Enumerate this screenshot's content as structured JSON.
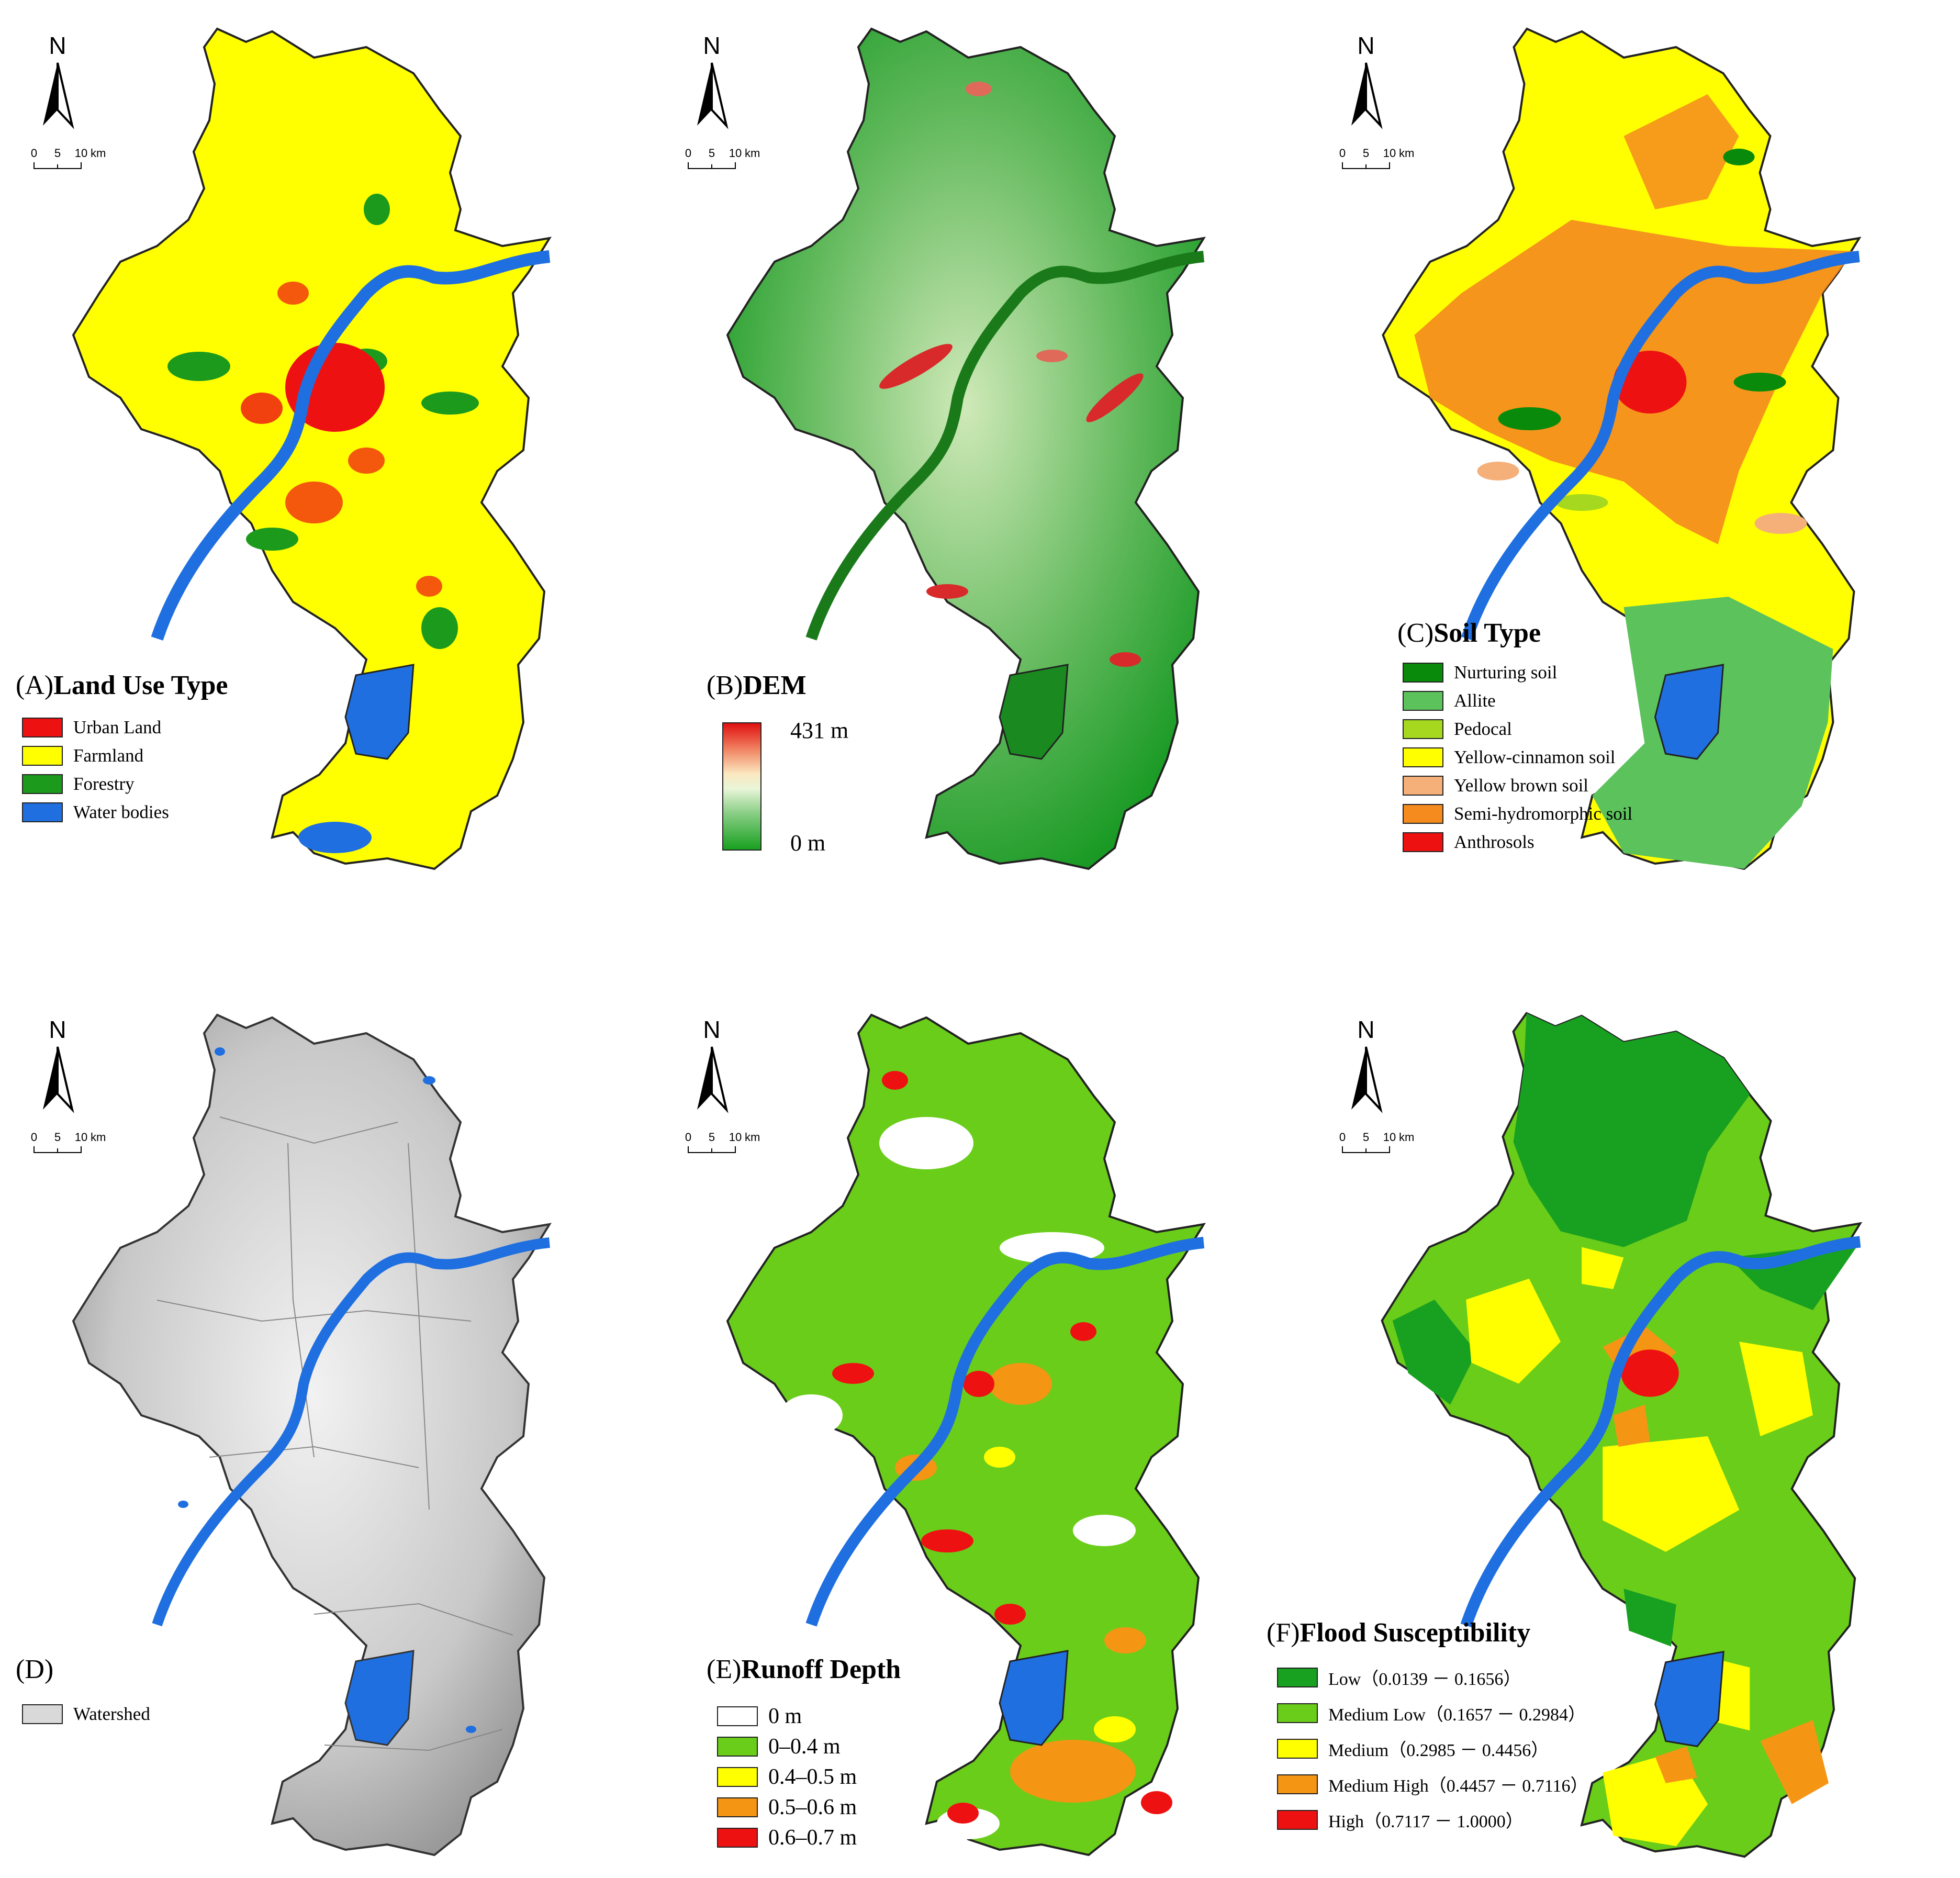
{
  "panels": {
    "a": {
      "tag": "(A)",
      "title": "Land Use Type",
      "legend": [
        {
          "label": "Urban Land",
          "color": "#ee1111"
        },
        {
          "label": "Farmland",
          "color": "#ffff00"
        },
        {
          "label": "Forestry",
          "color": "#1c9a1c"
        },
        {
          "label": "Water bodies",
          "color": "#1f6fe0"
        }
      ]
    },
    "b": {
      "tag": "(B)",
      "title": "DEM",
      "ramp_max": "431 m",
      "ramp_min": "0 m"
    },
    "c": {
      "tag": "(C)",
      "title": "Soil Type",
      "legend": [
        {
          "label": "Nurturing soil",
          "color": "#0a8a0a"
        },
        {
          "label": "Allite",
          "color": "#5cc25c"
        },
        {
          "label": "Pedocal",
          "color": "#a5d81e"
        },
        {
          "label": "Yellow-cinnamon soil",
          "color": "#ffff00"
        },
        {
          "label": "Yellow brown soil",
          "color": "#f5b07a"
        },
        {
          "label": "Semi-hydromorphic soil",
          "color": "#f58a1e"
        },
        {
          "label": "Anthrosols",
          "color": "#ee1111"
        }
      ]
    },
    "d": {
      "tag": "(D)",
      "title": "",
      "legend": [
        {
          "label": "Watershed",
          "color": "#d9d9d9"
        }
      ]
    },
    "e": {
      "tag": "(E)",
      "title": "Runoff Depth",
      "legend": [
        {
          "label": "0 m",
          "color": "#ffffff"
        },
        {
          "label": "0–0.4 m",
          "color": "#6acd1a"
        },
        {
          "label": "0.4–0.5 m",
          "color": "#ffff00"
        },
        {
          "label": "0.5–0.6 m",
          "color": "#f59514"
        },
        {
          "label": "0.6–0.7 m",
          "color": "#ee1111"
        }
      ]
    },
    "f": {
      "tag": "(F)",
      "title": "Flood  Susceptibility",
      "legend": [
        {
          "label": "Low（0.0139 － 0.1656）",
          "color": "#18a020"
        },
        {
          "label": "Medium Low（0.1657 － 0.2984）",
          "color": "#6acd1a"
        },
        {
          "label": "Medium（0.2985 － 0.4456）",
          "color": "#ffff00"
        },
        {
          "label": "Medium High（0.4457 － 0.7116）",
          "color": "#f59514"
        },
        {
          "label": "High（0.7117 － 1.0000）",
          "color": "#ee1111"
        }
      ]
    }
  },
  "north_label": "N",
  "scale": {
    "ticks": [
      "0",
      "5",
      "10"
    ],
    "unit": "km"
  },
  "colors": {
    "river": "#1f6fe0",
    "border": "#222222",
    "dem_low": "#18a020",
    "dem_high": "#e01010",
    "watershed": "#d9d9d9"
  }
}
